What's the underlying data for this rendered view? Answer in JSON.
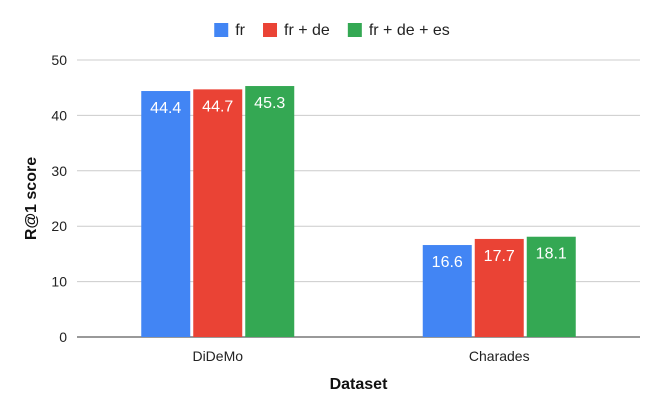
{
  "chart_data": {
    "type": "bar",
    "categories": [
      "DiDeMo",
      "Charades"
    ],
    "series": [
      {
        "name": "fr",
        "color": "#4285f4",
        "values": [
          44.4,
          16.6
        ]
      },
      {
        "name": "fr + de",
        "color": "#ea4335",
        "values": [
          44.7,
          17.7
        ]
      },
      {
        "name": "fr + de + es",
        "color": "#34a853",
        "values": [
          45.3,
          18.1
        ]
      }
    ],
    "title": "",
    "xlabel": "Dataset",
    "ylabel": "R@1 score",
    "ylim": [
      0,
      50
    ],
    "yticks": [
      0,
      10,
      20,
      30,
      40,
      50
    ],
    "grid": "horizontal",
    "legend_position": "top-center",
    "data_labels": true
  }
}
